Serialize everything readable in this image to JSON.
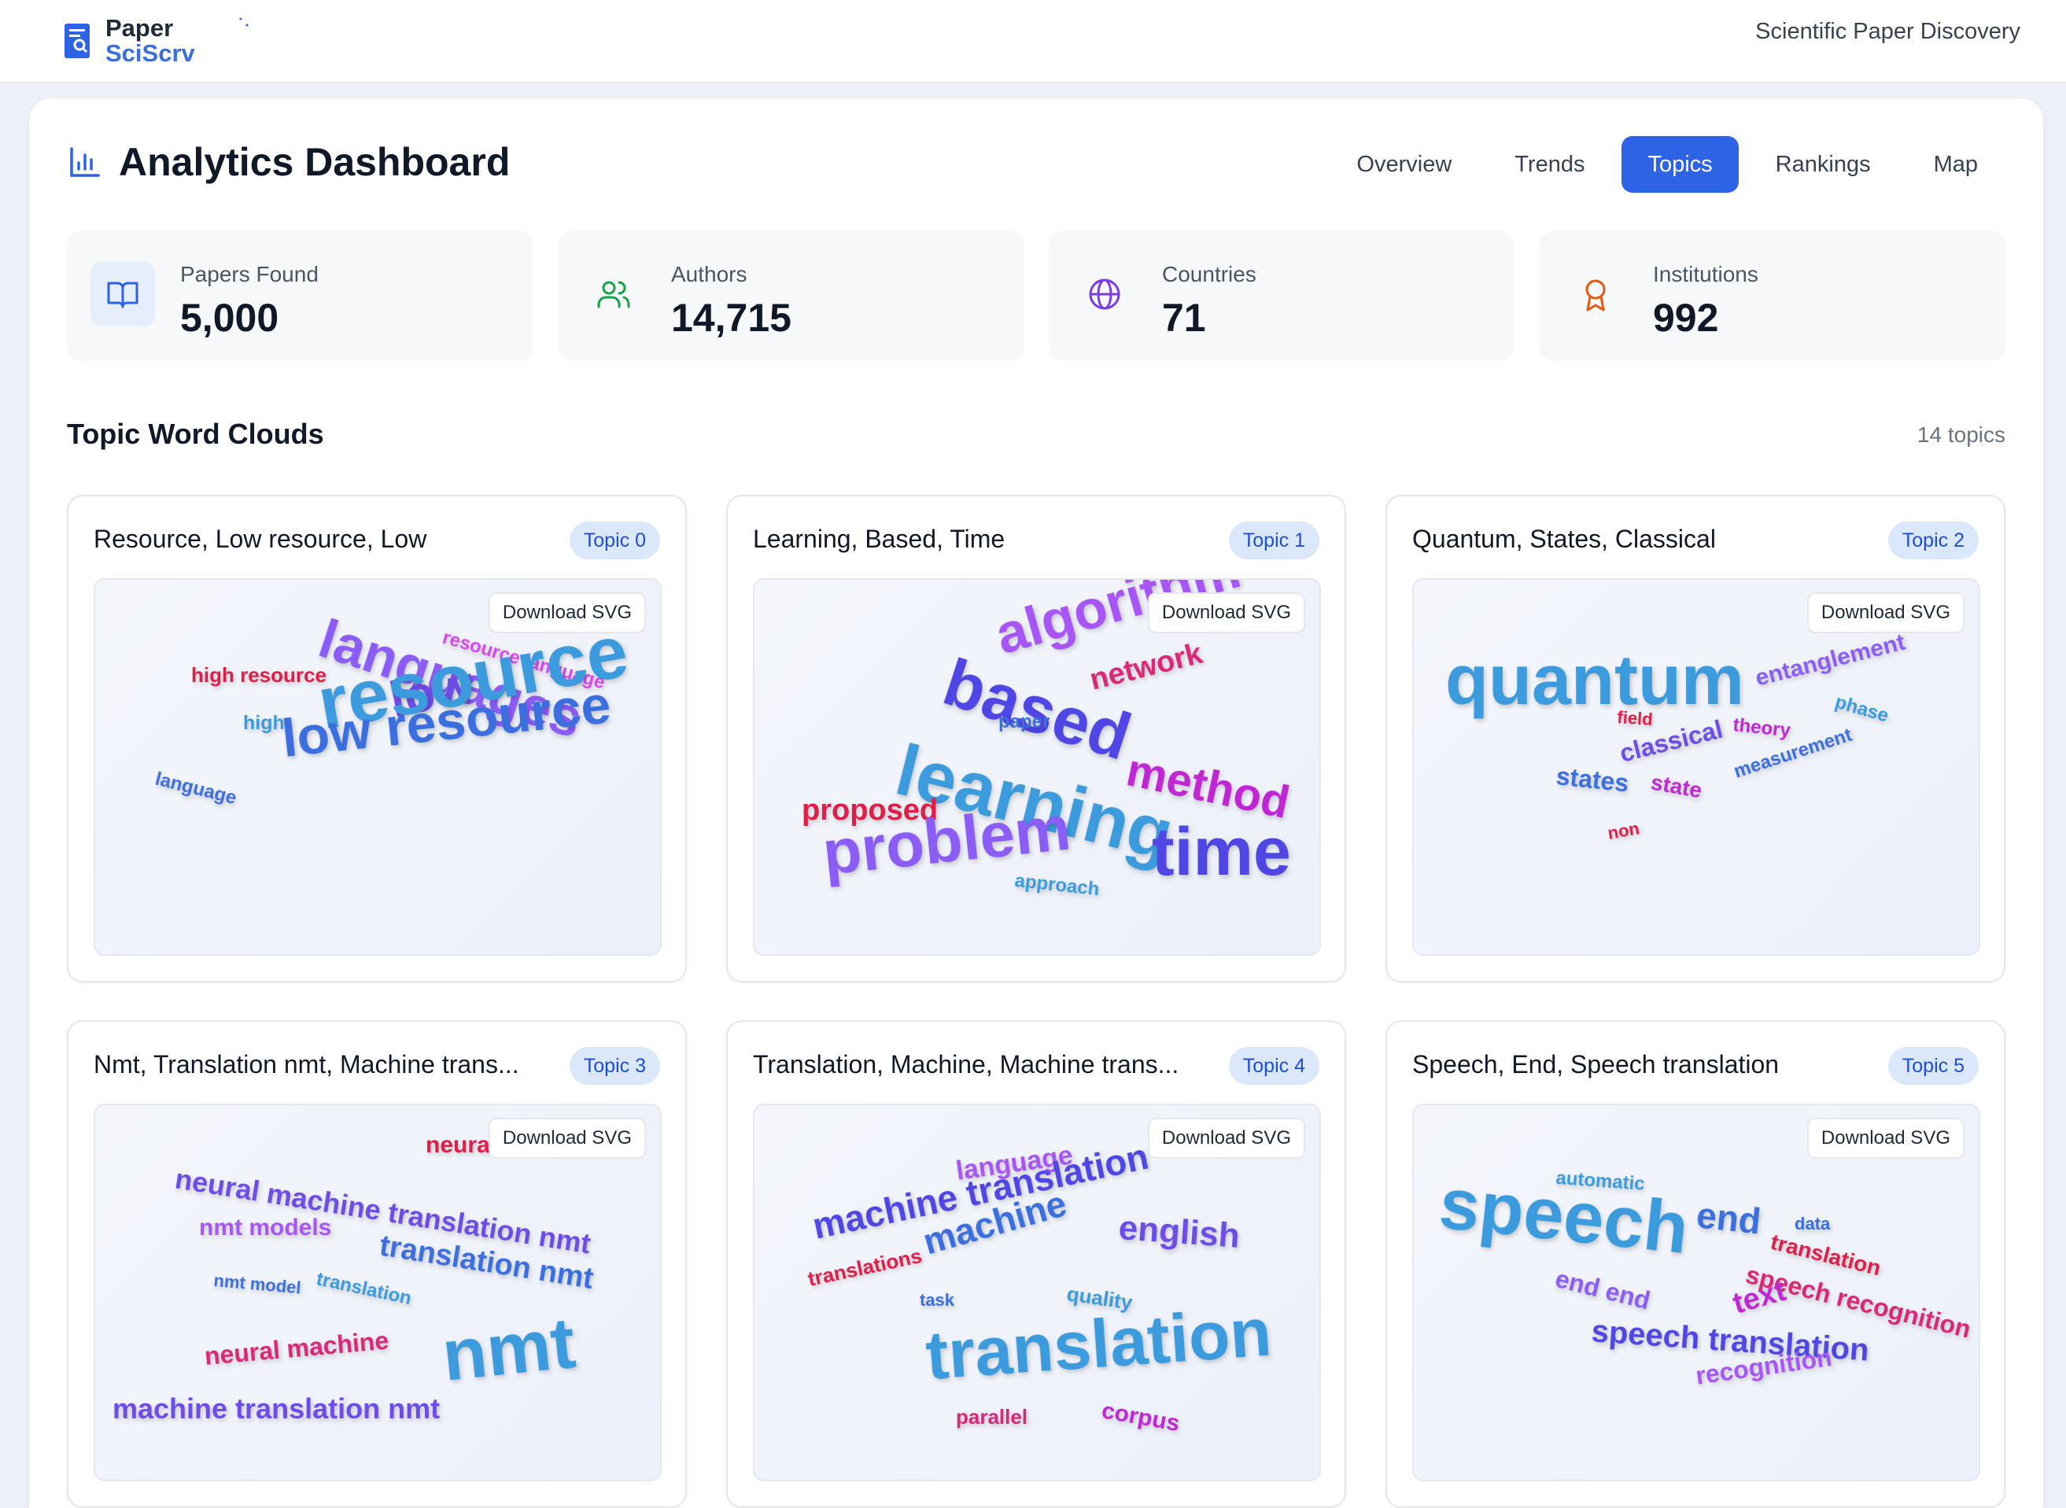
{
  "brand": {
    "line1": "Paper",
    "line2": "SciScrv"
  },
  "header": {
    "right_text": "Scientific Paper Discovery"
  },
  "dashboard": {
    "title": "Analytics Dashboard"
  },
  "tabs": [
    {
      "label": "Overview",
      "active": false
    },
    {
      "label": "Trends",
      "active": false
    },
    {
      "label": "Topics",
      "active": true
    },
    {
      "label": "Rankings",
      "active": false
    },
    {
      "label": "Map",
      "active": false
    }
  ],
  "stats": [
    {
      "label": "Papers Found",
      "value": "5,000",
      "icon": "book-icon",
      "color": "#2f63e6",
      "bg": "#e6eefc"
    },
    {
      "label": "Authors",
      "value": "14,715",
      "icon": "users-icon",
      "color": "#16a34a",
      "bg": "#f7f8fa"
    },
    {
      "label": "Countries",
      "value": "71",
      "icon": "globe-icon",
      "color": "#7c3aed",
      "bg": "#f7f8fa"
    },
    {
      "label": "Institutions",
      "value": "992",
      "icon": "award-icon",
      "color": "#ea580c",
      "bg": "#f7f8fa"
    }
  ],
  "section": {
    "title": "Topic Word Clouds",
    "count": "14 topics"
  },
  "download_label": "Download SVG",
  "colors": {
    "accent": "#2f63e6",
    "badge_bg": "#dbe7fb",
    "badge_text": "#1d4ed8"
  },
  "topics": [
    {
      "title": "Resource, Low resource, Low",
      "badge": "Topic 0",
      "words": [
        {
          "text": "languages",
          "color": "#8b5cf6",
          "size": 70
        },
        {
          "text": "resource language",
          "color": "#d946ef",
          "size": 24
        },
        {
          "text": "high resource",
          "color": "#e11d48",
          "size": 26
        },
        {
          "text": "low",
          "color": "#6d4ce8",
          "size": 64
        },
        {
          "text": "high",
          "color": "#3b9bdc",
          "size": 25
        },
        {
          "text": "resource",
          "color": "#3b9bdc",
          "size": 94
        },
        {
          "text": "language",
          "color": "#3b6fe0",
          "size": 24
        },
        {
          "text": "low resource",
          "color": "#3b6fe0",
          "size": 68
        }
      ]
    },
    {
      "title": "Learning, Based, Time",
      "badge": "Topic 1",
      "words": [
        {
          "text": "algorithm",
          "color": "#a855f7",
          "size": 70
        },
        {
          "text": "based",
          "color": "#4f46e5",
          "size": 84
        },
        {
          "text": "network",
          "color": "#db2777",
          "size": 38
        },
        {
          "text": "paper",
          "color": "#3b6fe0",
          "size": 24
        },
        {
          "text": "learning",
          "color": "#3b9bdc",
          "size": 92
        },
        {
          "text": "method",
          "color": "#c026d3",
          "size": 58
        },
        {
          "text": "proposed",
          "color": "#e11d48",
          "size": 38
        },
        {
          "text": "problem",
          "color": "#8b5cf6",
          "size": 80
        },
        {
          "text": "time",
          "color": "#4f46e5",
          "size": 86
        },
        {
          "text": "approach",
          "color": "#3b9bdc",
          "size": 24
        }
      ]
    },
    {
      "title": "Quantum, States, Classical",
      "badge": "Topic 2",
      "words": [
        {
          "text": "quantum",
          "color": "#3b9bdc",
          "size": 90
        },
        {
          "text": "entanglement",
          "color": "#8b5cf6",
          "size": 30
        },
        {
          "text": "phase",
          "color": "#3b9bdc",
          "size": 24
        },
        {
          "text": "field",
          "color": "#e11d48",
          "size": 22
        },
        {
          "text": "theory",
          "color": "#c026d3",
          "size": 24
        },
        {
          "text": "classical",
          "color": "#6d4ce8",
          "size": 32
        },
        {
          "text": "measurement",
          "color": "#3b6fe0",
          "size": 24
        },
        {
          "text": "states",
          "color": "#3b6fe0",
          "size": 32
        },
        {
          "text": "state",
          "color": "#c026d3",
          "size": 28
        },
        {
          "text": "non",
          "color": "#e11d48",
          "size": 22
        }
      ]
    },
    {
      "title": "Nmt, Translation nmt, Machine trans...",
      "badge": "Topic 3",
      "words": [
        {
          "text": "neural",
          "color": "#e11d48",
          "size": 30
        },
        {
          "text": "neural machine translation nmt",
          "color": "#6d4ce8",
          "size": 36
        },
        {
          "text": "nmt models",
          "color": "#a855f7",
          "size": 30
        },
        {
          "text": "translation nmt",
          "color": "#3b6fe0",
          "size": 38
        },
        {
          "text": "nmt model",
          "color": "#3b6fe0",
          "size": 22
        },
        {
          "text": "translation",
          "color": "#3b9bdc",
          "size": 24
        },
        {
          "text": "neural machine",
          "color": "#db2777",
          "size": 32
        },
        {
          "text": "nmt",
          "color": "#3b9bdc",
          "size": 92
        },
        {
          "text": "machine translation nmt",
          "color": "#6d4ce8",
          "size": 36
        }
      ]
    },
    {
      "title": "Translation, Machine, Machine trans...",
      "badge": "Topic 4",
      "words": [
        {
          "text": "language",
          "color": "#a855f7",
          "size": 34
        },
        {
          "text": "machine translation",
          "color": "#4f46e5",
          "size": 46
        },
        {
          "text": "english",
          "color": "#6d4ce8",
          "size": 44
        },
        {
          "text": "translations",
          "color": "#e11d48",
          "size": 26
        },
        {
          "text": "machine",
          "color": "#3b6fe0",
          "size": 46
        },
        {
          "text": "task",
          "color": "#3b6fe0",
          "size": 22
        },
        {
          "text": "quality",
          "color": "#3b9bdc",
          "size": 26
        },
        {
          "text": "translation",
          "color": "#3b9bdc",
          "size": 86
        },
        {
          "text": "parallel",
          "color": "#db2777",
          "size": 26
        },
        {
          "text": "corpus",
          "color": "#c026d3",
          "size": 30
        }
      ]
    },
    {
      "title": "Speech, End, Speech translation",
      "badge": "Topic 5",
      "words": [
        {
          "text": "automatic",
          "color": "#3b9bdc",
          "size": 24
        },
        {
          "text": "speech",
          "color": "#3b9bdc",
          "size": 92
        },
        {
          "text": "end",
          "color": "#3b6fe0",
          "size": 46
        },
        {
          "text": "data",
          "color": "#3b6fe0",
          "size": 22
        },
        {
          "text": "translation",
          "color": "#e11d48",
          "size": 28
        },
        {
          "text": "speech recognition",
          "color": "#db2777",
          "size": 32
        },
        {
          "text": "end end",
          "color": "#8b5cf6",
          "size": 32
        },
        {
          "text": "text",
          "color": "#c026d3",
          "size": 38
        },
        {
          "text": "speech translation",
          "color": "#4f46e5",
          "size": 40
        },
        {
          "text": "recognition",
          "color": "#a855f7",
          "size": 32
        }
      ]
    }
  ]
}
